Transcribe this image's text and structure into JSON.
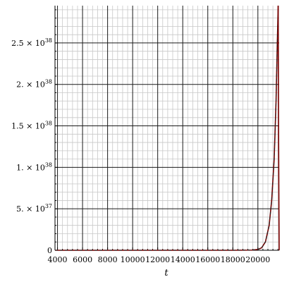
{
  "chart_data": {
    "type": "line",
    "title": "",
    "xlabel": "t",
    "ylabel": "",
    "xlim": [
      3800,
      21700
    ],
    "ylim": [
      0,
      2.95e+38
    ],
    "x_ticks": [
      4000,
      6000,
      8000,
      10000,
      12000,
      14000,
      16000,
      18000,
      20000
    ],
    "x_tick_labels": [
      "4000",
      "6000",
      "8000",
      "10000",
      "12000",
      "14000",
      "16000",
      "18000",
      "20000"
    ],
    "y_ticks": [
      0,
      5e+37,
      1e+38,
      1.5e+38,
      2e+38,
      2.5e+38
    ],
    "y_tick_labels": [
      {
        "mantissa": "0",
        "exponent": ""
      },
      {
        "mantissa": "5. × 10",
        "exponent": "37"
      },
      {
        "mantissa": "1. × 10",
        "exponent": "38"
      },
      {
        "mantissa": "1.5 × 10",
        "exponent": "38"
      },
      {
        "mantissa": "2. × 10",
        "exponent": "38"
      },
      {
        "mantissa": "2.5 × 10",
        "exponent": "38"
      }
    ],
    "grid": true,
    "series": [
      {
        "color": "#7a0000",
        "style": "solid",
        "x": [
          3800,
          6000,
          10000,
          14000,
          18000,
          19500,
          20000,
          20300,
          20600,
          20900,
          21100,
          21300,
          21450,
          21550,
          21620
        ],
        "y": [
          0,
          0,
          0,
          0,
          0,
          2e+35,
          1e+36,
          3e+36,
          1e+37,
          3e+37,
          6e+37,
          1.1e+38,
          1.8e+38,
          2.5e+38,
          2.95e+38
        ]
      },
      {
        "color": "#222222",
        "style": "dashed",
        "x": [
          3800,
          6000,
          10000,
          14000,
          18000,
          19500,
          20000,
          20300,
          20600,
          20900,
          21100,
          21300,
          21450,
          21550,
          21620
        ],
        "y": [
          0,
          0,
          0,
          0,
          0,
          2e+35,
          1e+36,
          3e+36,
          1e+37,
          3e+37,
          6e+37,
          1.1e+38,
          1.8e+38,
          2.5e+38,
          2.95e+38
        ]
      },
      {
        "color": "#7a0000",
        "style": "solid",
        "x": [
          21620,
          21650,
          21680,
          21700
        ],
        "y": [
          2.95e+38,
          1.5e+38,
          5e+37,
          0
        ]
      }
    ]
  }
}
